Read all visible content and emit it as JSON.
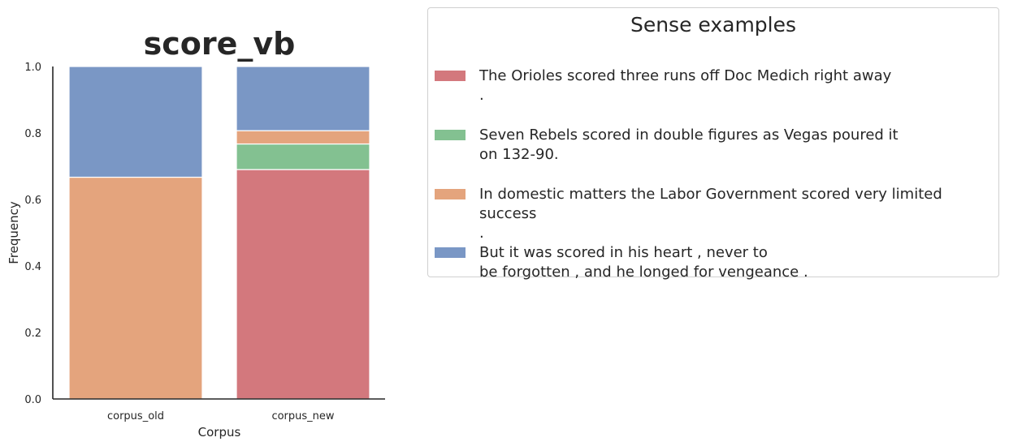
{
  "chart_data": {
    "type": "bar",
    "stacked": true,
    "title": "score_vb",
    "xlabel": "Corpus",
    "ylabel": "Frequency",
    "ylim": [
      0,
      1.0
    ],
    "yticks": [
      "0.0",
      "0.2",
      "0.4",
      "0.6",
      "0.8",
      "1.0"
    ],
    "categories": [
      "corpus_old",
      "corpus_new"
    ],
    "grid": false,
    "series": [
      {
        "name": "The Orioles scored three runs off Doc Medich right away\n.",
        "color": "#d3787d",
        "values": [
          0.0,
          0.69
        ]
      },
      {
        "name": "Seven Rebels scored in double figures as Vegas poured it\non 132-90.",
        "color": "#83c191",
        "values": [
          0.0,
          0.077
        ]
      },
      {
        "name": "In domestic matters the Labor Government scored very limited success\n.",
        "color": "#e4a47d",
        "values": [
          0.667,
          0.04
        ]
      },
      {
        "name": "But it was scored in his heart , never to\nbe forgotten , and he longed for vengeance .",
        "color": "#7a97c5",
        "values": [
          0.333,
          0.193
        ]
      }
    ],
    "legend": {
      "title": "Sense examples",
      "placement": "right, outside plot"
    }
  }
}
